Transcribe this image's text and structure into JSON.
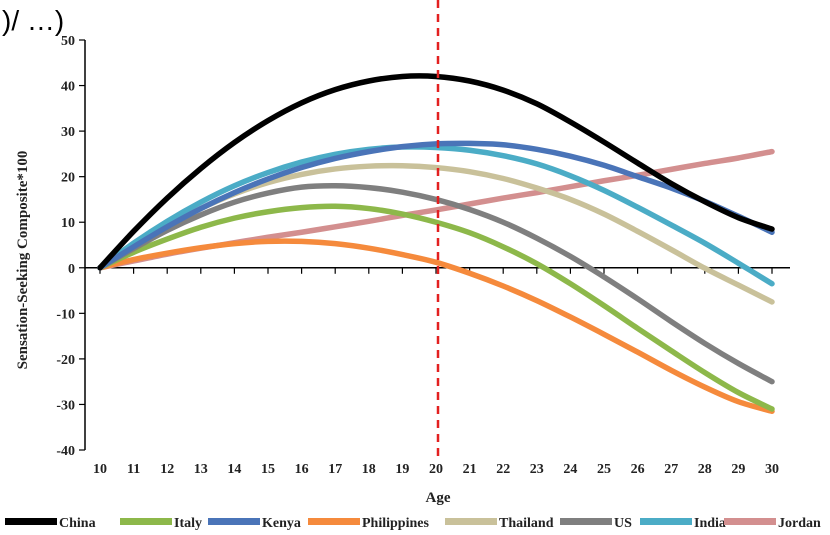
{
  "top_fragment": ")/ …)",
  "chart_data": {
    "type": "line",
    "title": "",
    "xlabel": "Age",
    "ylabel": "Sensation-Seeking Composite*100",
    "xlim": [
      10,
      30
    ],
    "ylim": [
      -40,
      50
    ],
    "x_ticks": [
      10,
      11,
      12,
      13,
      14,
      15,
      16,
      17,
      18,
      19,
      20,
      21,
      22,
      23,
      24,
      25,
      26,
      27,
      28,
      29,
      30
    ],
    "y_ticks": [
      -40,
      -30,
      -20,
      -10,
      0,
      10,
      20,
      30,
      40,
      50
    ],
    "grid": false,
    "legend_position": "bottom",
    "reference_line": {
      "x": 20,
      "style": "dashed",
      "color": "#e32020"
    },
    "x": [
      10,
      11,
      12,
      13,
      14,
      15,
      16,
      17,
      18,
      19,
      20,
      21,
      22,
      23,
      24,
      25,
      26,
      27,
      28,
      29,
      30
    ],
    "series": [
      {
        "name": "China",
        "color": "#000000",
        "values": [
          0,
          8.0,
          15.3,
          21.8,
          27.5,
          32.3,
          36.2,
          39.1,
          41.0,
          42.0,
          42.0,
          41.0,
          39.0,
          36.0,
          32.0,
          27.6,
          23.0,
          18.5,
          14.5,
          11.0,
          8.5
        ]
      },
      {
        "name": "Italy",
        "color": "#8db84a",
        "values": [
          0,
          3.4,
          6.3,
          8.9,
          10.9,
          12.3,
          13.2,
          13.5,
          13.0,
          11.8,
          10.0,
          7.7,
          4.6,
          0.9,
          -3.5,
          -8.3,
          -13.3,
          -18.2,
          -23.0,
          -27.4,
          -31.0
        ]
      },
      {
        "name": "Kenya",
        "color": "#4a74b8",
        "values": [
          0,
          4.6,
          9.0,
          13.0,
          16.5,
          19.5,
          22.0,
          24.0,
          25.5,
          26.6,
          27.2,
          27.3,
          27.0,
          26.0,
          24.5,
          22.5,
          20.0,
          17.5,
          14.6,
          11.3,
          7.8
        ]
      },
      {
        "name": "Philippines",
        "color": "#f58a3c",
        "values": [
          0,
          1.8,
          3.2,
          4.4,
          5.3,
          5.8,
          5.8,
          5.3,
          4.3,
          2.9,
          1.2,
          -1.2,
          -4.0,
          -7.2,
          -10.8,
          -14.6,
          -18.5,
          -22.5,
          -26.2,
          -29.4,
          -31.5
        ]
      },
      {
        "name": "Thailand",
        "color": "#c9c19a",
        "values": [
          0,
          4.8,
          9.2,
          13.0,
          16.2,
          18.7,
          20.5,
          21.7,
          22.3,
          22.4,
          22.0,
          21.1,
          19.6,
          17.5,
          15.0,
          11.8,
          8.0,
          4.0,
          -0.1,
          -3.8,
          -7.5
        ]
      },
      {
        "name": "US",
        "color": "#7f7f7f",
        "values": [
          0,
          4.2,
          8.2,
          11.6,
          14.4,
          16.4,
          17.7,
          18.0,
          17.6,
          16.6,
          15.0,
          12.8,
          10.0,
          6.5,
          2.5,
          -2.0,
          -6.8,
          -11.8,
          -16.6,
          -21.0,
          -25.0
        ]
      },
      {
        "name": "India",
        "color": "#4bacc6",
        "values": [
          0,
          5.4,
          10.2,
          14.4,
          18.0,
          20.9,
          23.2,
          24.9,
          26.0,
          26.5,
          26.4,
          25.8,
          24.6,
          22.8,
          20.2,
          17.0,
          13.3,
          9.4,
          5.4,
          1.0,
          -3.5
        ]
      },
      {
        "name": "Jordan",
        "color": "#d38f8f",
        "values": [
          0,
          1.5,
          3.0,
          4.3,
          5.5,
          6.7,
          7.8,
          9.0,
          10.2,
          11.5,
          12.7,
          14.0,
          15.3,
          16.5,
          17.8,
          19.1,
          20.3,
          21.6,
          22.9,
          24.1,
          25.5
        ]
      }
    ]
  }
}
